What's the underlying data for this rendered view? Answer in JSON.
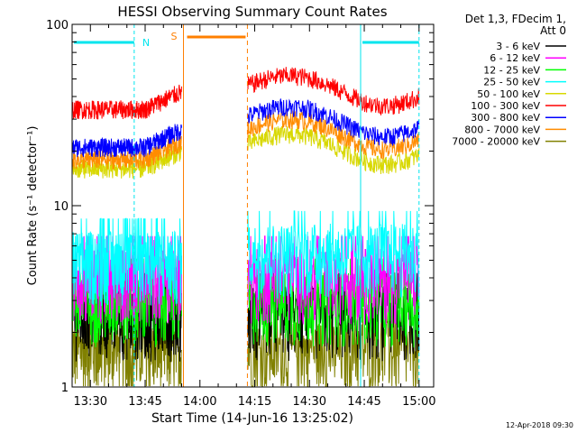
{
  "chart_data": {
    "type": "line",
    "title": "HESSI Observing Summary Count Rates",
    "xlabel": "Start Time (14-Jun-16 13:25:02)",
    "ylabel": "Count Rate (s⁻¹ detector⁻¹)",
    "yscale": "log",
    "ylim": [
      1,
      100
    ],
    "xlim_minutes_after_13_25": [
      0,
      99
    ],
    "x_ticks": [
      "13:30",
      "13:45",
      "14:00",
      "14:15",
      "14:30",
      "14:45",
      "15:00"
    ],
    "y_ticks": [
      "1",
      "10",
      "100"
    ],
    "legend_header": [
      "Det 1,3, FDecim 1,",
      "Att 0"
    ],
    "legend_position": "right, outside plot",
    "timestamp": "12-Apr-2018 09:30",
    "gaps": [
      {
        "label": "N",
        "type": "night",
        "intervals": [
          [
            "13:25",
            "13:42"
          ],
          [
            "14:44",
            "15:00"
          ]
        ],
        "color": "#00e5ee"
      },
      {
        "label": "S",
        "type": "SAA",
        "interval": [
          "13:55",
          "14:13"
        ],
        "color": "#ff7f00"
      }
    ],
    "series": [
      {
        "name": "3 - 6 keV",
        "color": "#000000",
        "level_before": 2.5,
        "level_after": 2.5
      },
      {
        "name": "6 - 12 keV",
        "color": "#ff00ff",
        "level_before": 4.0,
        "level_after": 4.0
      },
      {
        "name": "12 - 25 keV",
        "color": "#00ff00",
        "level_before": 3.0,
        "level_after": 3.0
      },
      {
        "name": "25 - 50 keV",
        "color": "#00ffff",
        "level_before": 5.0,
        "level_after": 5.5
      },
      {
        "name": "50 - 100 keV",
        "color": "#d8d800",
        "level_before": 16,
        "level_after": 19
      },
      {
        "name": "100 - 300 keV",
        "color": "#ff0000",
        "level_before": 34,
        "level_after": 40
      },
      {
        "name": "300 - 800 keV",
        "color": "#0000ff",
        "level_before": 21,
        "level_after": 27
      },
      {
        "name": "800 - 7000 keV",
        "color": "#ff8c00",
        "level_before": 18,
        "level_after": 23
      },
      {
        "name": "7000 - 20000 keV",
        "color": "#808000",
        "level_before": 1.6,
        "level_after": 1.6
      }
    ]
  }
}
